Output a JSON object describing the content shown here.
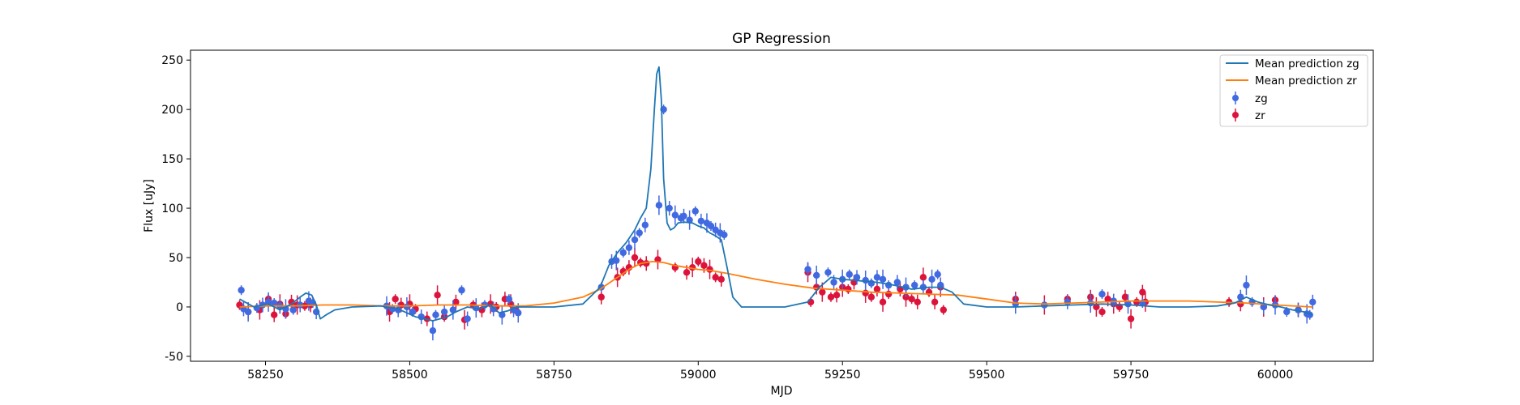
{
  "chart_data": {
    "type": "scatter",
    "title": "GP Regression",
    "xlabel": "MJD",
    "ylabel": "Flux [uJy]",
    "xlim": [
      58120,
      60170
    ],
    "ylim": [
      -55,
      260
    ],
    "xticks": [
      58250,
      58500,
      58750,
      59000,
      59250,
      59500,
      59750,
      60000
    ],
    "yticks": [
      -50,
      0,
      50,
      100,
      150,
      200,
      250
    ],
    "grid": false,
    "legend_position": "top-right",
    "colors": {
      "mean_zg": "#1f77b4",
      "mean_zr": "#ff7f0e",
      "points_zg": "#4169e1",
      "points_zr": "#dc143c"
    },
    "legend": [
      "Mean prediction zg",
      "Mean prediction zr",
      "zg",
      "zr"
    ],
    "series": [
      {
        "name": "Mean prediction zg",
        "kind": "line",
        "x": [
          58205,
          58230,
          58255,
          58275,
          58295,
          58310,
          58320,
          58330,
          58338,
          58345,
          58355,
          58370,
          58400,
          58450,
          58480,
          58510,
          58540,
          58565,
          58580,
          58600,
          58620,
          58640,
          58655,
          58670,
          58685,
          58700,
          58750,
          58800,
          58830,
          58845,
          58860,
          58875,
          58890,
          58900,
          58910,
          58918,
          58924,
          58928,
          58932,
          58936,
          58940,
          58946,
          58952,
          58958,
          58965,
          58975,
          58990,
          59000,
          59010,
          59020,
          59030,
          59040,
          59050,
          59060,
          59075,
          59100,
          59150,
          59190,
          59210,
          59230,
          59250,
          59270,
          59290,
          59310,
          59340,
          59370,
          59400,
          59420,
          59440,
          59460,
          59500,
          59550,
          59600,
          59650,
          59700,
          59750,
          59800,
          59850,
          59900,
          59930,
          59950,
          59970,
          59990,
          60010,
          60030,
          60050,
          60065
        ],
        "y": [
          8,
          0,
          3,
          -3,
          3,
          10,
          14,
          12,
          2,
          -12,
          -8,
          -3,
          0,
          1,
          -2,
          -10,
          -14,
          -10,
          -5,
          0,
          -2,
          2,
          -6,
          -4,
          0,
          0,
          0,
          3,
          20,
          42,
          55,
          65,
          78,
          90,
          100,
          140,
          200,
          236,
          243,
          210,
          130,
          85,
          78,
          80,
          85,
          86,
          85,
          82,
          80,
          75,
          72,
          68,
          40,
          10,
          0,
          0,
          0,
          5,
          20,
          30,
          28,
          27,
          26,
          25,
          22,
          18,
          20,
          20,
          15,
          3,
          0,
          0,
          1,
          2,
          3,
          2,
          0,
          0,
          1,
          4,
          10,
          5,
          2,
          0,
          -3,
          -5,
          -8
        ]
      },
      {
        "name": "Mean prediction zr",
        "kind": "line",
        "x": [
          58205,
          58250,
          58300,
          58350,
          58400,
          58450,
          58500,
          58550,
          58600,
          58650,
          58700,
          58750,
          58800,
          58830,
          58860,
          58880,
          58900,
          58920,
          58940,
          58960,
          58980,
          59000,
          59020,
          59050,
          59100,
          59150,
          59200,
          59250,
          59300,
          59350,
          59400,
          59450,
          59500,
          59550,
          59600,
          59650,
          59700,
          59750,
          59800,
          59850,
          59900,
          59950,
          60000,
          60065
        ],
        "y": [
          0,
          1,
          1,
          2,
          2,
          1,
          1,
          2,
          2,
          1,
          1,
          4,
          10,
          18,
          30,
          38,
          44,
          46,
          45,
          42,
          40,
          38,
          37,
          34,
          28,
          23,
          19,
          17,
          15,
          14,
          13,
          12,
          8,
          4,
          3,
          4,
          5,
          6,
          6,
          6,
          5,
          4,
          2,
          0
        ]
      },
      {
        "name": "zg",
        "kind": "points",
        "x": [
          58208,
          58212,
          58220,
          58235,
          58245,
          58255,
          58265,
          58275,
          58285,
          58298,
          58310,
          58325,
          58332,
          58338,
          58460,
          58470,
          58480,
          58495,
          58505,
          58520,
          58540,
          58545,
          58560,
          58575,
          58590,
          58600,
          58615,
          58630,
          58645,
          58660,
          58672,
          58680,
          58688,
          58832,
          58850,
          58858,
          58870,
          58880,
          58890,
          58898,
          58908,
          58932,
          58940,
          58950,
          58960,
          58970,
          58975,
          58985,
          58995,
          59005,
          59015,
          59022,
          59030,
          59038,
          59045,
          59190,
          59205,
          59225,
          59235,
          59250,
          59262,
          59275,
          59290,
          59300,
          59310,
          59320,
          59330,
          59345,
          59360,
          59375,
          59390,
          59405,
          59415,
          59420,
          59550,
          59600,
          59640,
          59680,
          59700,
          59720,
          59745,
          59770,
          59940,
          59950,
          59960,
          59980,
          60000,
          60020,
          60040,
          60055,
          60060,
          60065
        ],
        "y": [
          17,
          -2,
          -5,
          -1,
          2,
          5,
          4,
          1,
          -2,
          -3,
          2,
          6,
          4,
          -5,
          1,
          -2,
          -3,
          0,
          -5,
          -10,
          -24,
          -8,
          -5,
          -3,
          17,
          -12,
          -1,
          2,
          -2,
          -8,
          8,
          -3,
          -6,
          20,
          46,
          47,
          55,
          60,
          68,
          75,
          83,
          103,
          200,
          100,
          93,
          90,
          92,
          88,
          97,
          87,
          85,
          82,
          78,
          75,
          73,
          38,
          32,
          35,
          25,
          28,
          33,
          30,
          27,
          24,
          30,
          28,
          22,
          25,
          20,
          22,
          20,
          28,
          33,
          22,
          3,
          2,
          5,
          4,
          13,
          6,
          3,
          4,
          10,
          22,
          5,
          0,
          2,
          -5,
          -3,
          -7,
          -8,
          5
        ]
      },
      {
        "name": "zr",
        "kind": "points",
        "x": [
          58205,
          58220,
          58240,
          58255,
          58265,
          58275,
          58285,
          58295,
          58305,
          58318,
          58328,
          58465,
          58475,
          58485,
          58500,
          58510,
          58530,
          58548,
          58560,
          58580,
          58595,
          58610,
          58625,
          58640,
          58650,
          58665,
          58675,
          58685,
          58832,
          58860,
          58870,
          58880,
          58890,
          58900,
          58910,
          58930,
          58960,
          58980,
          58990,
          59000,
          59010,
          59020,
          59030,
          59040,
          59190,
          59195,
          59205,
          59215,
          59230,
          59240,
          59250,
          59260,
          59270,
          59290,
          59300,
          59310,
          59320,
          59330,
          59350,
          59360,
          59370,
          59380,
          59390,
          59400,
          59410,
          59420,
          59425,
          59550,
          59600,
          59640,
          59680,
          59690,
          59700,
          59710,
          59720,
          59730,
          59740,
          59750,
          59760,
          59770,
          59775,
          59920,
          59940,
          59980,
          60000,
          60040
        ],
        "y": [
          2,
          -5,
          -3,
          8,
          -8,
          3,
          -7,
          5,
          2,
          1,
          2,
          -5,
          8,
          2,
          3,
          -2,
          -12,
          12,
          -10,
          5,
          -13,
          2,
          -3,
          3,
          0,
          8,
          3,
          -4,
          10,
          30,
          36,
          40,
          50,
          45,
          44,
          48,
          40,
          35,
          40,
          46,
          42,
          38,
          30,
          28,
          35,
          5,
          20,
          15,
          10,
          12,
          20,
          18,
          25,
          14,
          10,
          18,
          5,
          13,
          18,
          10,
          8,
          5,
          30,
          15,
          5,
          20,
          -3,
          8,
          2,
          8,
          10,
          0,
          -5,
          8,
          3,
          0,
          10,
          -12,
          5,
          15,
          5,
          5,
          3,
          0,
          7,
          -3
        ]
      }
    ]
  }
}
